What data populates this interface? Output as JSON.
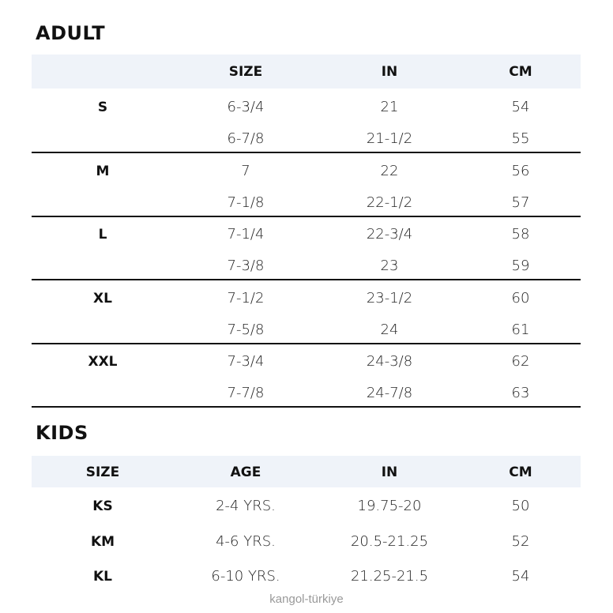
{
  "adult": {
    "title": "ADULT",
    "headers": [
      "",
      "SIZE",
      "IN",
      "CM"
    ],
    "groups": [
      {
        "size": "S",
        "rows": [
          [
            "6-3/4",
            "21",
            "54"
          ],
          [
            "6-7/8",
            "21-1/2",
            "55"
          ]
        ]
      },
      {
        "size": "M",
        "rows": [
          [
            "7",
            "22",
            "56"
          ],
          [
            "7-1/8",
            "22-1/2",
            "57"
          ]
        ]
      },
      {
        "size": "L",
        "rows": [
          [
            "7-1/4",
            "22-3/4",
            "58"
          ],
          [
            "7-3/8",
            "23",
            "59"
          ]
        ]
      },
      {
        "size": "XL",
        "rows": [
          [
            "7-1/2",
            "23-1/2",
            "60"
          ],
          [
            "7-5/8",
            "24",
            "61"
          ]
        ]
      },
      {
        "size": "XXL",
        "rows": [
          [
            "7-3/4",
            "24-3/8",
            "62"
          ],
          [
            "7-7/8",
            "24-7/8",
            "63"
          ]
        ]
      }
    ]
  },
  "kids": {
    "title": "KIDS",
    "headers": [
      "SIZE",
      "AGE",
      "IN",
      "CM"
    ],
    "rows": [
      [
        "KS",
        "2-4 YRS.",
        "19.75-20",
        "50"
      ],
      [
        "KM",
        "4-6 YRS.",
        "20.5-21.25",
        "52"
      ],
      [
        "KL",
        "6-10 YRS.",
        "21.25-21.5",
        "54"
      ]
    ]
  },
  "watermark": "kangol-türkiye"
}
